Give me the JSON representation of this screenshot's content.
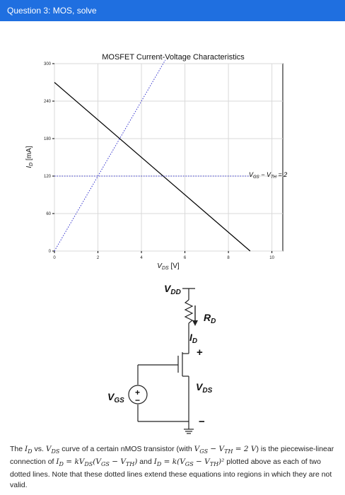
{
  "header": {
    "title": "Question 3: MOS, solve"
  },
  "colors": {
    "topbar": "#1f6fe0",
    "dotted": "#3333cc"
  },
  "chart_data": {
    "type": "line",
    "title": "MOSFET Current-Voltage Characteristics",
    "xlabel": "V_DS [V]",
    "ylabel": "I_D [mA]",
    "xlim": [
      0,
      10.5
    ],
    "ylim": [
      0,
      300
    ],
    "x_ticks": [
      "0",
      "2",
      "4",
      "6",
      "8",
      "10"
    ],
    "y_ticks": [
      "0",
      "60",
      "120",
      "180",
      "240",
      "300"
    ],
    "grid": true,
    "annotation": "V_GS − V_TH = 2",
    "series": [
      {
        "style": "solid",
        "color": "#000000",
        "x": [
          0,
          9
        ],
        "y": [
          270,
          0
        ]
      },
      {
        "style": "dotted",
        "color": "#3333cc",
        "x": [
          0,
          5.1
        ],
        "y": [
          0,
          306
        ]
      },
      {
        "style": "dotted",
        "color": "#3333cc",
        "x": [
          0,
          9
        ],
        "y": [
          120,
          120
        ]
      }
    ]
  },
  "circuit": {
    "vdd_label": "VDD",
    "rd_label": "RD",
    "id_label": "ID",
    "vds_label": "VDS",
    "vgs_label": "VGS",
    "plus_sign": "+",
    "minus_sign": "−",
    "source_plus": "+",
    "source_minus": "−"
  },
  "description": {
    "p1": "The ",
    "id": "ID",
    "p2": " vs. ",
    "vds": "VDS",
    "p3": " curve of a certain nMOS transistor (with ",
    "cond": "VGS − VTH = 2 V",
    "p4": ") is the piecewise-linear connection of ",
    "eq1": "ID = kVDS(VGS − VTH)",
    "p5": " and ",
    "eq2": "ID = k(VGS − VTH)²",
    "p6": " plotted above as each of two dotted lines. Note that these dotted lines extend these equations into regions in which they are not valid."
  }
}
